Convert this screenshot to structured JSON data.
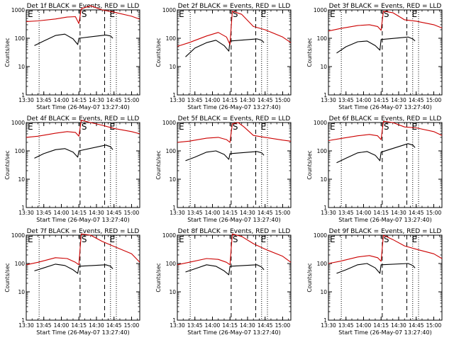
{
  "figure": {
    "x_tick_labels": [
      "13:30",
      "13:45",
      "14:00",
      "14:15",
      "14:30",
      "14:45",
      "15:00"
    ],
    "y_tick_labels": [
      "1",
      "10",
      "100",
      "1000"
    ],
    "xlabel": "Start Time (26-May-07 13:27:40)",
    "ylabel": "Counts/sec",
    "region_labels": [
      "E",
      "S",
      "E"
    ],
    "colors": {
      "events": "#000000",
      "lld": "#cc0000"
    }
  },
  "chart_data": [
    {
      "type": "line",
      "title": "Det 1f BLACK = Events, RED = LLD",
      "xlabel": "Start Time (26-May-07 13:27:40)",
      "ylabel": "Counts/sec",
      "y_scale": "log",
      "ylim": [
        1,
        1000
      ],
      "xlim": [
        "13:30",
        "15:07"
      ],
      "markers": {
        "dotted": [
          "13:41",
          "14:42",
          "14:47"
        ],
        "dashed": [
          "14:16",
          "14:37"
        ]
      },
      "series": [
        {
          "name": "Events",
          "x": [
            "13:37",
            "13:45",
            "13:55",
            "14:03",
            "14:10",
            "14:14",
            "14:15",
            "14:38",
            "14:42",
            "14:44"
          ],
          "y": [
            55,
            80,
            125,
            140,
            95,
            60,
            100,
            130,
            120,
            100
          ]
        },
        {
          "name": "LLD",
          "x": [
            "13:30",
            "13:40",
            "13:55",
            "14:05",
            "14:12",
            "14:15",
            "14:17",
            "14:25",
            "14:35",
            "14:45",
            "15:00",
            "15:07"
          ],
          "y": [
            390,
            410,
            480,
            560,
            580,
            330,
            1100,
            1400,
            1000,
            830,
            600,
            470
          ]
        }
      ]
    },
    {
      "type": "line",
      "title": "Det 2f BLACK = Events, RED = LLD",
      "xlabel": "Start Time (26-May-07 13:27:40)",
      "ylabel": "Counts/sec",
      "y_scale": "log",
      "ylim": [
        1,
        1000
      ],
      "xlim": [
        "13:30",
        "15:07"
      ],
      "markers": {
        "dotted": [
          "13:41",
          "14:42",
          "14:47"
        ],
        "dashed": [
          "14:16",
          "14:37"
        ]
      },
      "series": [
        {
          "name": "Events",
          "x": [
            "13:37",
            "13:45",
            "13:55",
            "14:03",
            "14:10",
            "14:14",
            "14:15",
            "14:38",
            "14:42",
            "14:44"
          ],
          "y": [
            22,
            45,
            70,
            85,
            55,
            35,
            80,
            95,
            85,
            70
          ]
        },
        {
          "name": "LLD",
          "x": [
            "13:30",
            "13:40",
            "13:55",
            "14:05",
            "14:12",
            "14:15",
            "14:17",
            "14:25",
            "14:35",
            "14:45",
            "15:00",
            "15:07"
          ],
          "y": [
            52,
            70,
            120,
            160,
            110,
            60,
            900,
            700,
            260,
            200,
            110,
            70
          ]
        }
      ]
    },
    {
      "type": "line",
      "title": "Det 3f BLACK = Events, RED = LLD",
      "xlabel": "Start Time (26-May-07 13:27:40)",
      "ylabel": "Counts/sec",
      "y_scale": "log",
      "ylim": [
        1,
        1000
      ],
      "xlim": [
        "13:30",
        "15:07"
      ],
      "markers": {
        "dotted": [
          "13:41",
          "14:42",
          "14:47"
        ],
        "dashed": [
          "14:16",
          "14:37"
        ]
      },
      "series": [
        {
          "name": "Events",
          "x": [
            "13:37",
            "13:45",
            "13:55",
            "14:03",
            "14:10",
            "14:14",
            "14:15",
            "14:38",
            "14:42",
            "14:44"
          ],
          "y": [
            30,
            50,
            75,
            80,
            55,
            38,
            90,
            110,
            95,
            80
          ]
        },
        {
          "name": "LLD",
          "x": [
            "13:30",
            "13:40",
            "13:55",
            "14:05",
            "14:12",
            "14:15",
            "14:17",
            "14:25",
            "14:35",
            "14:45",
            "15:00",
            "15:07"
          ],
          "y": [
            180,
            220,
            280,
            300,
            260,
            190,
            900,
            800,
            450,
            400,
            300,
            230
          ]
        }
      ]
    },
    {
      "type": "line",
      "title": "Det 4f BLACK = Events, RED = LLD",
      "xlabel": "Start Time (26-May-07 13:27:40)",
      "ylabel": "Counts/sec",
      "y_scale": "log",
      "ylim": [
        1,
        1000
      ],
      "xlim": [
        "13:30",
        "15:07"
      ],
      "markers": {
        "dotted": [
          "13:41",
          "14:42",
          "14:47"
        ],
        "dashed": [
          "14:16",
          "14:37"
        ]
      },
      "series": [
        {
          "name": "Events",
          "x": [
            "13:37",
            "13:45",
            "13:55",
            "14:03",
            "14:10",
            "14:14",
            "14:15",
            "14:38",
            "14:42",
            "14:44"
          ],
          "y": [
            55,
            80,
            110,
            120,
            90,
            60,
            100,
            160,
            140,
            110
          ]
        },
        {
          "name": "LLD",
          "x": [
            "13:30",
            "13:40",
            "13:55",
            "14:05",
            "14:12",
            "14:15",
            "14:17",
            "14:25",
            "14:35",
            "14:45",
            "15:00",
            "15:07"
          ],
          "y": [
            300,
            330,
            420,
            480,
            450,
            330,
            1200,
            1000,
            800,
            620,
            480,
            400
          ]
        }
      ]
    },
    {
      "type": "line",
      "title": "Det 5f BLACK = Events, RED = LLD",
      "xlabel": "Start Time (26-May-07 13:27:40)",
      "ylabel": "Counts/sec",
      "y_scale": "log",
      "ylim": [
        1,
        1000
      ],
      "xlim": [
        "13:30",
        "15:07"
      ],
      "markers": {
        "dotted": [
          "13:41",
          "14:42",
          "14:47"
        ],
        "dashed": [
          "14:16",
          "14:37"
        ]
      },
      "series": [
        {
          "name": "Events",
          "x": [
            "13:37",
            "13:45",
            "13:55",
            "14:03",
            "14:10",
            "14:14",
            "14:15",
            "14:38",
            "14:42",
            "14:44"
          ],
          "y": [
            45,
            60,
            90,
            100,
            75,
            50,
            80,
            95,
            85,
            70
          ]
        },
        {
          "name": "LLD",
          "x": [
            "13:30",
            "13:40",
            "13:55",
            "14:05",
            "14:12",
            "14:15",
            "14:17",
            "14:22",
            "14:27",
            "14:35",
            "14:45",
            "15:00",
            "15:07"
          ],
          "y": [
            200,
            220,
            280,
            300,
            250,
            200,
            900,
            1000,
            700,
            350,
            300,
            240,
            220
          ]
        }
      ]
    },
    {
      "type": "line",
      "title": "Det 6f BLACK = Events, RED = LLD",
      "xlabel": "Start Time (26-May-07 13:27:40)",
      "ylabel": "Counts/sec",
      "y_scale": "log",
      "ylim": [
        1,
        1000
      ],
      "xlim": [
        "13:30",
        "15:07"
      ],
      "markers": {
        "dotted": [
          "13:41",
          "14:42",
          "14:47"
        ],
        "dashed": [
          "14:16",
          "14:37"
        ]
      },
      "series": [
        {
          "name": "Events",
          "x": [
            "13:37",
            "13:45",
            "13:55",
            "14:03",
            "14:10",
            "14:14",
            "14:15",
            "14:38",
            "14:42",
            "14:44"
          ],
          "y": [
            38,
            55,
            85,
            95,
            70,
            45,
            90,
            180,
            160,
            130
          ]
        },
        {
          "name": "LLD",
          "x": [
            "13:30",
            "13:40",
            "13:55",
            "14:05",
            "14:12",
            "14:15",
            "14:17",
            "14:25",
            "14:35",
            "14:45",
            "15:00",
            "15:07"
          ],
          "y": [
            230,
            270,
            340,
            380,
            340,
            250,
            1100,
            1000,
            700,
            650,
            480,
            350
          ]
        }
      ]
    },
    {
      "type": "line",
      "title": "Det 7f BLACK = Events, RED = LLD",
      "xlabel": "Start Time (26-May-07 13:27:40)",
      "ylabel": "Counts/sec",
      "y_scale": "log",
      "ylim": [
        1,
        1000
      ],
      "xlim": [
        "13:30",
        "15:07"
      ],
      "markers": {
        "dotted": [
          "13:41",
          "14:42",
          "14:47"
        ],
        "dashed": [
          "14:16",
          "14:37"
        ]
      },
      "series": [
        {
          "name": "Events",
          "x": [
            "13:37",
            "13:45",
            "13:55",
            "14:03",
            "14:10",
            "14:14",
            "14:15",
            "14:38",
            "14:42",
            "14:44"
          ],
          "y": [
            55,
            70,
            95,
            85,
            60,
            45,
            80,
            90,
            80,
            65
          ]
        },
        {
          "name": "LLD",
          "x": [
            "13:30",
            "13:40",
            "13:55",
            "14:05",
            "14:12",
            "14:15",
            "14:17",
            "14:25",
            "14:35",
            "14:45",
            "15:00",
            "15:07"
          ],
          "y": [
            90,
            110,
            160,
            150,
            110,
            90,
            1100,
            1000,
            600,
            400,
            220,
            110
          ]
        }
      ]
    },
    {
      "type": "line",
      "title": "Det 8f BLACK = Events, RED = LLD",
      "xlabel": "Start Time (26-May-07 13:27:40)",
      "ylabel": "Counts/sec",
      "y_scale": "log",
      "ylim": [
        1,
        1000
      ],
      "xlim": [
        "13:30",
        "15:07"
      ],
      "markers": {
        "dotted": [
          "13:41",
          "14:42",
          "14:47"
        ],
        "dashed": [
          "14:16",
          "14:37"
        ]
      },
      "series": [
        {
          "name": "Events",
          "x": [
            "13:37",
            "13:45",
            "13:55",
            "14:03",
            "14:10",
            "14:14",
            "14:15",
            "14:38",
            "14:42",
            "14:44"
          ],
          "y": [
            50,
            65,
            90,
            80,
            55,
            40,
            80,
            90,
            75,
            60
          ]
        },
        {
          "name": "LLD",
          "x": [
            "13:30",
            "13:40",
            "13:55",
            "14:05",
            "14:12",
            "14:15",
            "14:17",
            "14:25",
            "14:35",
            "14:45",
            "15:00",
            "15:07"
          ],
          "y": [
            90,
            110,
            150,
            140,
            110,
            90,
            1100,
            900,
            500,
            320,
            180,
            110
          ]
        }
      ]
    },
    {
      "type": "line",
      "title": "Det 9f BLACK = Events, RED = LLD",
      "xlabel": "Start Time (26-May-07 13:27:40)",
      "ylabel": "Counts/sec",
      "y_scale": "log",
      "ylim": [
        1,
        1000
      ],
      "xlim": [
        "13:30",
        "15:07"
      ],
      "markers": {
        "dotted": [
          "13:41",
          "14:42",
          "14:47"
        ],
        "dashed": [
          "14:16",
          "14:37"
        ]
      },
      "series": [
        {
          "name": "Events",
          "x": [
            "13:37",
            "13:45",
            "13:55",
            "14:03",
            "14:10",
            "14:14",
            "14:15",
            "14:38",
            "14:42",
            "14:44"
          ],
          "y": [
            45,
            60,
            90,
            100,
            70,
            45,
            90,
            100,
            85,
            70
          ]
        },
        {
          "name": "LLD",
          "x": [
            "13:30",
            "13:40",
            "13:55",
            "14:05",
            "14:12",
            "14:15",
            "14:17",
            "14:25",
            "14:35",
            "14:45",
            "15:00",
            "15:07"
          ],
          "y": [
            100,
            120,
            170,
            190,
            160,
            120,
            1000,
            700,
            420,
            320,
            220,
            150
          ]
        }
      ]
    }
  ]
}
